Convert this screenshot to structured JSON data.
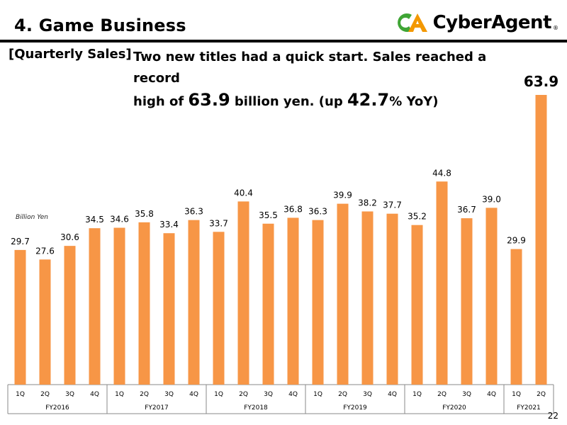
{
  "header": {
    "title": "4. Game Business",
    "logo_text": "CyberAgent",
    "logo_mark": "CA",
    "logo_reg": "®"
  },
  "section_label": "[Quarterly Sales]",
  "headline": {
    "line1": "Two new titles had a quick start. Sales reached a record",
    "line2_pre": "high of ",
    "value": "63.9",
    "line2_mid": " billion yen. (up ",
    "pct": "42.7",
    "line2_post": "% YoY)"
  },
  "unit_label": "Billion Yen",
  "page_number": "22",
  "colors": {
    "bar": "#F79646",
    "axis": "#888888",
    "logo_green": "#3FA535",
    "logo_orange": "#F39800"
  },
  "chart_data": {
    "type": "bar",
    "title": "",
    "xlabel": "",
    "ylabel": "Billion Yen",
    "ylim": [
      0,
      70
    ],
    "categories": [
      "1Q",
      "2Q",
      "3Q",
      "4Q",
      "1Q",
      "2Q",
      "3Q",
      "4Q",
      "1Q",
      "2Q",
      "3Q",
      "4Q",
      "1Q",
      "2Q",
      "3Q",
      "4Q",
      "1Q",
      "2Q",
      "3Q",
      "4Q",
      "1Q",
      "2Q"
    ],
    "groups": [
      {
        "name": "FY2016",
        "count": 4
      },
      {
        "name": "FY2017",
        "count": 4
      },
      {
        "name": "FY2018",
        "count": 4
      },
      {
        "name": "FY2019",
        "count": 4
      },
      {
        "name": "FY2020",
        "count": 4
      },
      {
        "name": "FY2021",
        "count": 2
      }
    ],
    "values": [
      29.7,
      27.6,
      30.6,
      34.5,
      34.6,
      35.8,
      33.4,
      36.3,
      33.7,
      40.4,
      35.5,
      36.8,
      36.3,
      39.9,
      38.2,
      37.7,
      35.2,
      44.8,
      36.7,
      39.0,
      29.9,
      63.9
    ],
    "data_labels": [
      "29.7",
      "27.6",
      "30.6",
      "34.5",
      "34.6",
      "35.8",
      "33.4",
      "36.3",
      "33.7",
      "40.4",
      "35.5",
      "36.8",
      "36.3",
      "39.9",
      "38.2",
      "37.7",
      "35.2",
      "44.8",
      "36.7",
      "39.0",
      "29.9",
      "63.9"
    ],
    "highlight_index": 21,
    "grid": false,
    "legend": "none"
  }
}
